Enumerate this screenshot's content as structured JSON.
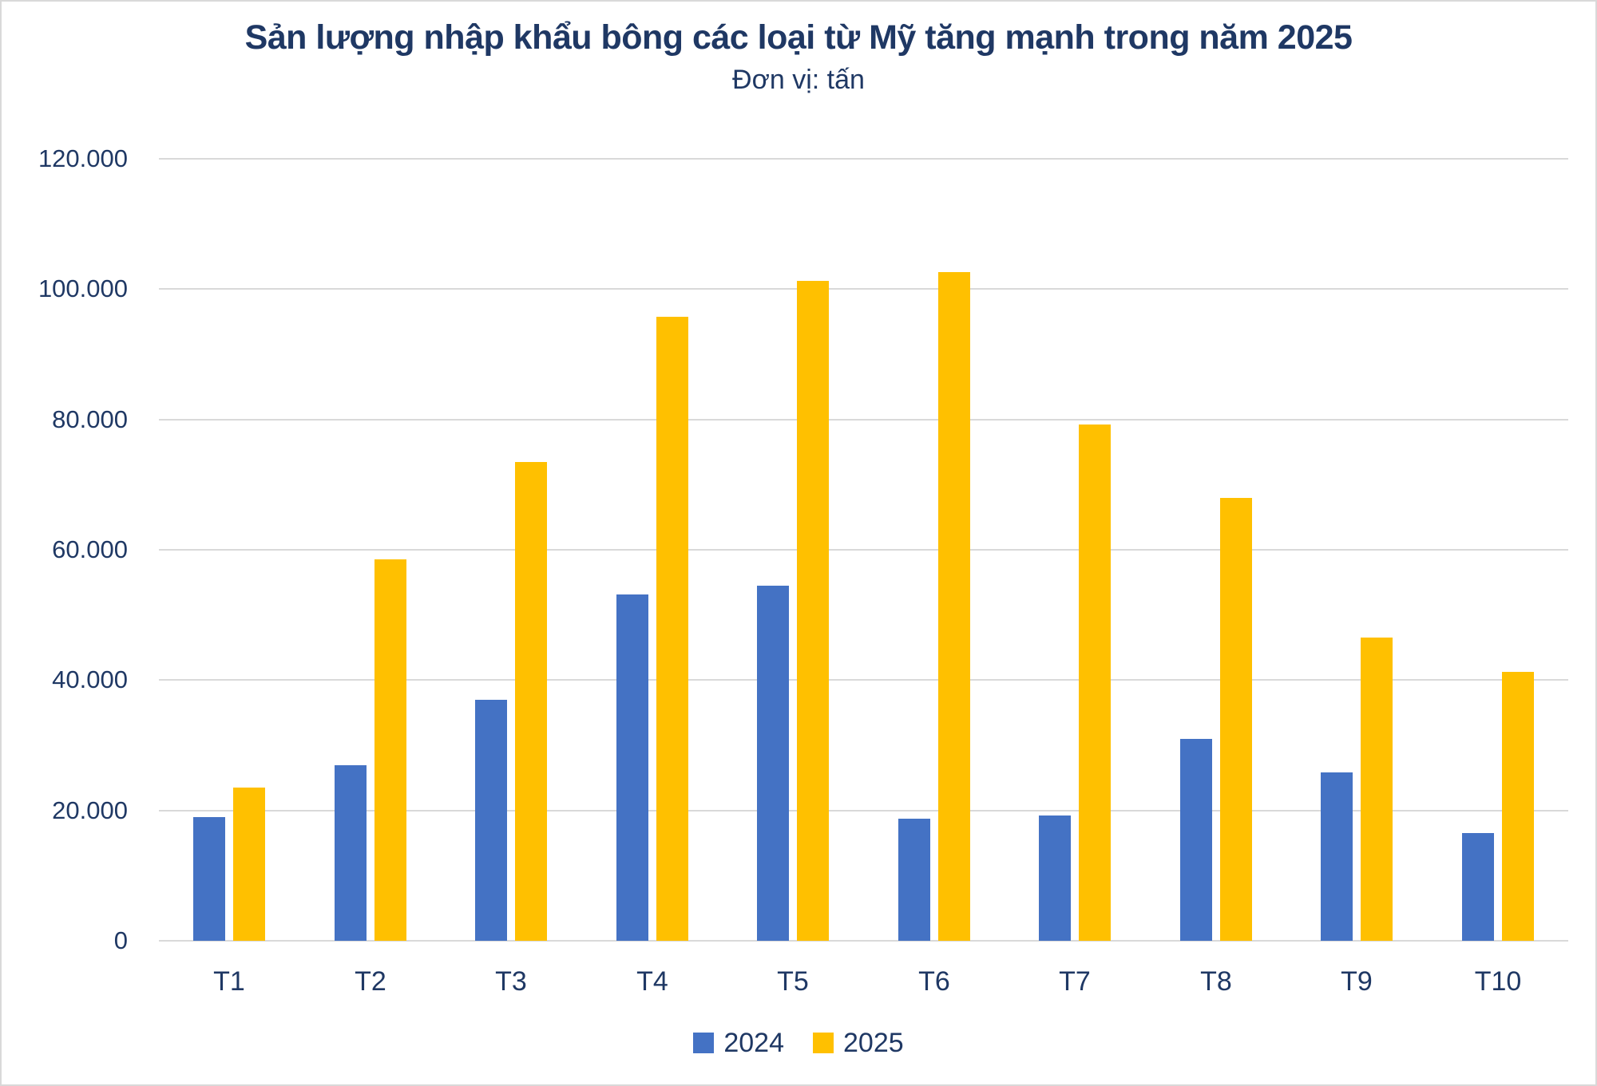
{
  "chart_data": {
    "type": "bar",
    "title": "Sản lượng nhập khẩu bông các loại từ Mỹ tăng mạnh trong năm 2025",
    "subtitle": "Đơn vị: tấn",
    "unit": "tấn",
    "categories": [
      "T1",
      "T2",
      "T3",
      "T4",
      "T5",
      "T6",
      "T7",
      "T8",
      "T9",
      "T10"
    ],
    "series": [
      {
        "name": "2024",
        "color": "#4472C4",
        "values": [
          19000,
          27000,
          37000,
          53200,
          54500,
          18700,
          19200,
          31000,
          25800,
          16500
        ]
      },
      {
        "name": "2025",
        "color": "#FFC000",
        "values": [
          23500,
          58500,
          73500,
          95800,
          101300,
          102600,
          79200,
          68000,
          46500,
          41300
        ]
      }
    ],
    "ylim": [
      0,
      120000
    ],
    "ytick_step": 20000,
    "ytick_labels": [
      "0",
      "20.000",
      "40.000",
      "60.000",
      "80.000",
      "100.000",
      "120.000"
    ],
    "grid": true,
    "legend_position": "bottom",
    "colors": {
      "title_text": "#1F3864",
      "axis_text": "#1F3864",
      "gridline": "#D9D9D9",
      "frame_border": "#D9D9D9"
    }
  }
}
